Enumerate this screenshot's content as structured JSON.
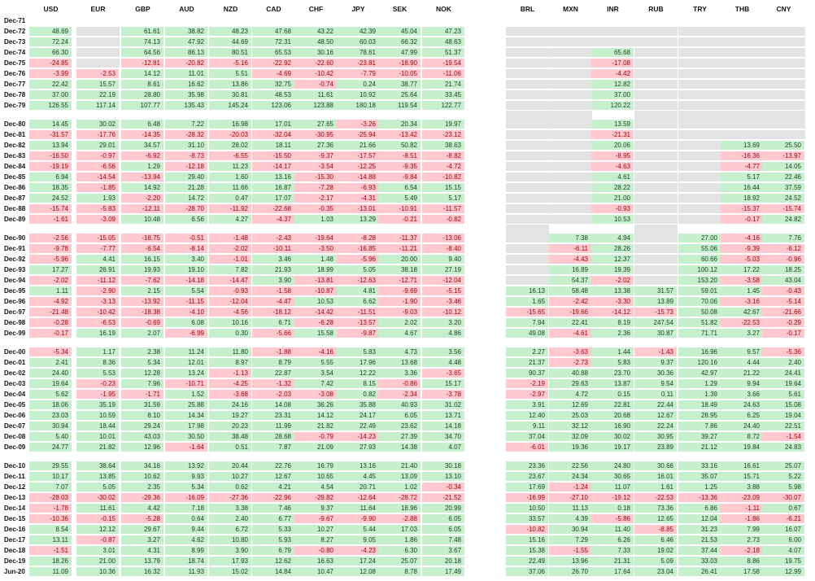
{
  "columns_left": [
    "USD",
    "EUR",
    "GBP",
    "AUD",
    "NZD",
    "CAD",
    "CHF",
    "JPY",
    "SEK",
    "NOK"
  ],
  "columns_right": [
    "BRL",
    "MXN",
    "INR",
    "RUB",
    "TRY",
    "THB",
    "CNY"
  ],
  "colors": {
    "positive": "#c6efce",
    "negative": "#ffc7ce",
    "missing": "#e3e3e3"
  },
  "rows": [
    {
      "label": "Dec-71",
      "left": [
        null,
        null,
        null,
        null,
        null,
        null,
        null,
        null,
        null,
        null
      ],
      "right": [
        null,
        null,
        null,
        null,
        null,
        null,
        null
      ]
    },
    {
      "label": "Dec-72",
      "left": [
        "48.69",
        null,
        "61.61",
        "38.82",
        "48.23",
        "47.68",
        "43.22",
        "42.39",
        "45.04",
        "47.23"
      ],
      "right": [
        null,
        null,
        null,
        null,
        null,
        null,
        null
      ]
    },
    {
      "label": "Dec-73",
      "left": [
        "72.24",
        null,
        "74.13",
        "47.92",
        "44.69",
        "72.31",
        "48.50",
        "60.03",
        "66.32",
        "48.63"
      ],
      "right": [
        null,
        null,
        null,
        null,
        null,
        null,
        null
      ]
    },
    {
      "label": "Dec-74",
      "left": [
        "66.30",
        null,
        "64.56",
        "86.13",
        "80.51",
        "65.53",
        "30.16",
        "78.61",
        "47.99",
        "51.37"
      ],
      "right": [
        null,
        null,
        "65.68",
        null,
        null,
        null,
        null
      ]
    },
    {
      "label": "Dec-75",
      "left": [
        "-24.85",
        null,
        "-12.81",
        "-20.82",
        "-5.16",
        "-22.92",
        "-22.60",
        "-23.81",
        "-18.90",
        "-19.54"
      ],
      "right": [
        null,
        null,
        "-17.08",
        null,
        null,
        null,
        null
      ]
    },
    {
      "label": "Dec-76",
      "left": [
        "-3.99",
        "-2.53",
        "14.12",
        "11.01",
        "5.51",
        "-4.69",
        "-10.42",
        "-7.79",
        "-10.05",
        "-11.06"
      ],
      "right": [
        null,
        null,
        "-4.42",
        null,
        null,
        null,
        null
      ]
    },
    {
      "label": "Dec-77",
      "left": [
        "22.42",
        "15.57",
        "8.61",
        "16.62",
        "13.86",
        "32.75",
        "-0.74",
        "0.24",
        "38.77",
        "21.74"
      ],
      "right": [
        null,
        null,
        "12.82",
        null,
        null,
        null,
        null
      ]
    },
    {
      "label": "Dec-78",
      "left": [
        "37.00",
        "22.19",
        "28.80",
        "35.98",
        "30.81",
        "48.53",
        "11.61",
        "10.92",
        "25.64",
        "33.45"
      ],
      "right": [
        null,
        null,
        "37.00",
        null,
        null,
        null,
        null
      ]
    },
    {
      "label": "Dec-79",
      "left": [
        "126.55",
        "117.14",
        "107.77",
        "135.43",
        "145.24",
        "123.06",
        "123.88",
        "180.18",
        "119.54",
        "122.77"
      ],
      "right": [
        null,
        null,
        "120.22",
        null,
        null,
        null,
        null
      ]
    },
    {
      "label": "Dec-80",
      "left": [
        "14.45",
        "30.02",
        "6.48",
        "7.22",
        "16.98",
        "17.01",
        "27.65",
        "-3.26",
        "20.34",
        "19.97"
      ],
      "right": [
        null,
        null,
        "13.59",
        null,
        null,
        null,
        null
      ]
    },
    {
      "label": "Dec-81",
      "left": [
        "-31.57",
        "-17.76",
        "-14.35",
        "-28.32",
        "-20.03",
        "-32.04",
        "-30.95",
        "-25.94",
        "-13.42",
        "-23.12"
      ],
      "right": [
        null,
        null,
        "-21.31",
        null,
        null,
        null,
        null
      ]
    },
    {
      "label": "Dec-82",
      "left": [
        "13.94",
        "29.01",
        "34.57",
        "31.10",
        "28.02",
        "18.11",
        "27.36",
        "21.66",
        "50.82",
        "38.63"
      ],
      "right": [
        null,
        null,
        "20.06",
        null,
        null,
        "13.69",
        "25.50"
      ]
    },
    {
      "label": "Dec-83",
      "left": [
        "-16.50",
        "-0.97",
        "-6.92",
        "-8.73",
        "-6.55",
        "-15.50",
        "-9.37",
        "-17.57",
        "-8.51",
        "-8.82"
      ],
      "right": [
        null,
        null,
        "-8.95",
        null,
        null,
        "-16.36",
        "-13.97"
      ]
    },
    {
      "label": "Dec-84",
      "left": [
        "-19.19",
        "-6.56",
        "1.29",
        "-12.18",
        "11.23",
        "-14.17",
        "-3.54",
        "-12.25",
        "-9.35",
        "-4.72"
      ],
      "right": [
        null,
        null,
        "-4.63",
        null,
        null,
        "-4.77",
        "14.05"
      ]
    },
    {
      "label": "Dec-85",
      "left": [
        "6.94",
        "-14.54",
        "-13.94",
        "29.40",
        "1.60",
        "13.16",
        "-15.30",
        "-14.88",
        "-9.84",
        "-10.82"
      ],
      "right": [
        null,
        null,
        "4.61",
        null,
        null,
        "5.17",
        "22.46"
      ]
    },
    {
      "label": "Dec-86",
      "left": [
        "18.35",
        "-1.85",
        "14.92",
        "21.28",
        "11.66",
        "16.87",
        "-7.28",
        "-6.93",
        "6.54",
        "15.15"
      ],
      "right": [
        null,
        null,
        "28.22",
        null,
        null,
        "16.44",
        "37.59"
      ]
    },
    {
      "label": "Dec-87",
      "left": [
        "24.52",
        "1.93",
        "-2.20",
        "14.72",
        "0.47",
        "17.07",
        "-2.17",
        "-4.31",
        "5.49",
        "5.17"
      ],
      "right": [
        null,
        null,
        "21.00",
        null,
        null,
        "18.92",
        "24.52"
      ]
    },
    {
      "label": "Dec-88",
      "left": [
        "-15.74",
        "-5.83",
        "-12.11",
        "-28.70",
        "-11.92",
        "-22.68",
        "-0.35",
        "-13.01",
        "-10.91",
        "-11.57"
      ],
      "right": [
        null,
        null,
        "-0.93",
        null,
        null,
        "-15.37",
        "-15.74"
      ]
    },
    {
      "label": "Dec-89",
      "left": [
        "-1.61",
        "-3.09",
        "10.48",
        "6.56",
        "4.27",
        "-4.37",
        "1.03",
        "13.29",
        "-0.21",
        "-0.82"
      ],
      "right": [
        null,
        null,
        "10.53",
        null,
        null,
        "-0.17",
        "24.82"
      ]
    },
    {
      "label": "Dec-90",
      "left": [
        "-2.56",
        "-15.05",
        "-18.75",
        "-0.51",
        "-1.48",
        "-2.43",
        "-19.64",
        "-8.28",
        "-11.37",
        "-13.06"
      ],
      "right": [
        null,
        "7.38",
        "4.94",
        null,
        "27.00",
        "-4.16",
        "7.76"
      ]
    },
    {
      "label": "Dec-91",
      "left": [
        "-9.78",
        "-7.77",
        "-6.54",
        "-8.14",
        "-2.02",
        "-10.11",
        "-3.50",
        "-16.85",
        "-11.21",
        "-8.40"
      ],
      "right": [
        null,
        "-6.11",
        "28.26",
        null,
        "55.06",
        "-9.39",
        "-6.12"
      ]
    },
    {
      "label": "Dec-92",
      "left": [
        "-5.96",
        "4.41",
        "16.15",
        "3.40",
        "-1.01",
        "3.46",
        "1.48",
        "-5.96",
        "20.00",
        "9.40"
      ],
      "right": [
        null,
        "-4.43",
        "12.37",
        null,
        "60.66",
        "-5.03",
        "-0.96"
      ]
    },
    {
      "label": "Dec-93",
      "left": [
        "17.27",
        "26.91",
        "19.93",
        "19.10",
        "7.82",
        "21.93",
        "18.99",
        "5.05",
        "38.18",
        "27.19"
      ],
      "right": [
        null,
        "16.89",
        "19.39",
        null,
        "100.12",
        "17.22",
        "18.25"
      ]
    },
    {
      "label": "Dec-94",
      "left": [
        "-2.02",
        "-11.12",
        "-7.62",
        "-14.18",
        "-14.47",
        "3.90",
        "-13.81",
        "-12.63",
        "-12.71",
        "-12.04"
      ],
      "right": [
        null,
        "54.37",
        "-2.02",
        null,
        "153.20",
        "-3.58",
        "43.04"
      ]
    },
    {
      "label": "Dec-95",
      "left": [
        "1.11",
        "-2.90",
        "2.15",
        "5.54",
        "-0.93",
        "-1.58",
        "-10.87",
        "4.81",
        "-9.69",
        "-5.15"
      ],
      "right": [
        "16.13",
        "58.48",
        "13.38",
        "31.57",
        "59.01",
        "1.45",
        "-0.43"
      ]
    },
    {
      "label": "Dec-96",
      "left": [
        "-4.92",
        "-3.13",
        "-13.92",
        "-11.15",
        "-12.04",
        "-4.47",
        "10.53",
        "6.62",
        "-1.90",
        "-3.46"
      ],
      "right": [
        "1.65",
        "-2.42",
        "-3.30",
        "13.89",
        "70.06",
        "-3.16",
        "-5.14"
      ]
    },
    {
      "label": "Dec-97",
      "left": [
        "-21.48",
        "-10.42",
        "-18.38",
        "-4.10",
        "-4.56",
        "-18.12",
        "-14.42",
        "-11.51",
        "-9.03",
        "-10.12"
      ],
      "right": [
        "-15.65",
        "-19.66",
        "-14.12",
        "-15.73",
        "50.08",
        "42.67",
        "-21.66"
      ]
    },
    {
      "label": "Dec-98",
      "left": [
        "-0.28",
        "-6.53",
        "-0.69",
        "6.08",
        "10.16",
        "6.71",
        "-6.28",
        "-13.57",
        "2.02",
        "3.20"
      ],
      "right": [
        "7.94",
        "22.41",
        "8.19",
        "247.54",
        "51.82",
        "-22.53",
        "-0.29"
      ]
    },
    {
      "label": "Dec-99",
      "left": [
        "-0.17",
        "16.19",
        "2.07",
        "-6.99",
        "0.30",
        "-5.66",
        "15.58",
        "-9.87",
        "4.67",
        "4.86"
      ],
      "right": [
        "49.08",
        "-4.61",
        "2.36",
        "30.87",
        "71.71",
        "3.27",
        "-0.17"
      ]
    },
    {
      "label": "Dec-00",
      "left": [
        "-5.34",
        "1.17",
        "2.38",
        "11.24",
        "11.80",
        "-1.88",
        "-4.16",
        "5.83",
        "4.73",
        "3.56"
      ],
      "right": [
        "2.27",
        "-3.63",
        "1.44",
        "-1.43",
        "16.96",
        "9.57",
        "-5.36"
      ]
    },
    {
      "label": "Dec-01",
      "left": [
        "2.41",
        "8.36",
        "5.34",
        "12.01",
        "8.97",
        "8.79",
        "5.55",
        "17.96",
        "13.68",
        "4.48"
      ],
      "right": [
        "21.37",
        "-2.73",
        "5.83",
        "9.37",
        "120.16",
        "4.44",
        "2.40"
      ]
    },
    {
      "label": "Dec-02",
      "left": [
        "24.40",
        "5.53",
        "12.28",
        "13.24",
        "-1.13",
        "22.87",
        "3.54",
        "12.22",
        "3.36",
        "-3.65"
      ],
      "right": [
        "90.37",
        "40.88",
        "23.70",
        "30.36",
        "42.97",
        "21.22",
        "24.41"
      ]
    },
    {
      "label": "Dec-03",
      "left": [
        "19.64",
        "-0.23",
        "7.96",
        "-10.71",
        "-4.25",
        "-1.32",
        "7.42",
        "8.15",
        "-0.86",
        "15.17"
      ],
      "right": [
        "-2.19",
        "29.63",
        "13.87",
        "9.54",
        "1.29",
        "9.94",
        "19.64"
      ]
    },
    {
      "label": "Dec-04",
      "left": [
        "5.62",
        "-1.95",
        "-1.71",
        "1.52",
        "-3.68",
        "-2.03",
        "-3.08",
        "0.82",
        "-2.34",
        "-3.78"
      ],
      "right": [
        "-2.97",
        "4.72",
        "0.15",
        "0.11",
        "1.39",
        "3.66",
        "5.61"
      ]
    },
    {
      "label": "Dec-05",
      "left": [
        "18.06",
        "35.19",
        "31.59",
        "25.88",
        "24.16",
        "14.08",
        "36.26",
        "35.88",
        "40.93",
        "31.02"
      ],
      "right": [
        "3.91",
        "12.69",
        "22.81",
        "22.44",
        "18.49",
        "24.63",
        "15.08"
      ]
    },
    {
      "label": "Dec-06",
      "left": [
        "23.03",
        "10.59",
        "8.10",
        "14.34",
        "19.27",
        "23.31",
        "14.12",
        "24.17",
        "6.05",
        "13.71"
      ],
      "right": [
        "12.40",
        "25.03",
        "20.68",
        "12.67",
        "28.95",
        "6.25",
        "19.04"
      ]
    },
    {
      "label": "Dec-07",
      "left": [
        "30.94",
        "18.44",
        "29.24",
        "17.98",
        "20.23",
        "11.99",
        "21.82",
        "22.49",
        "23.62",
        "14.18"
      ],
      "right": [
        "9.11",
        "32.12",
        "16.90",
        "22.24",
        "7.86",
        "24.40",
        "22.51"
      ]
    },
    {
      "label": "Dec-08",
      "left": [
        "5.40",
        "10.01",
        "43.03",
        "30.50",
        "38.48",
        "28.68",
        "-0.79",
        "-14.23",
        "27.39",
        "34.70"
      ],
      "right": [
        "37.04",
        "32.09",
        "30.02",
        "30.95",
        "39.27",
        "8.72",
        "-1.54"
      ]
    },
    {
      "label": "Dec-09",
      "left": [
        "24.77",
        "21.82",
        "12.96",
        "-1.64",
        "0.51",
        "7.87",
        "21.09",
        "27.93",
        "14.38",
        "4.07"
      ],
      "right": [
        "-6.01",
        "19.36",
        "19.17",
        "23.89",
        "21.12",
        "19.84",
        "24.83"
      ]
    },
    {
      "label": "Dec-10",
      "left": [
        "29.55",
        "38.64",
        "34.16",
        "13.92",
        "20.44",
        "22.76",
        "16.79",
        "13.16",
        "21.40",
        "30.18"
      ],
      "right": [
        "23.36",
        "22.56",
        "24.80",
        "30.66",
        "33.16",
        "16.61",
        "25.07"
      ]
    },
    {
      "label": "Dec-11",
      "left": [
        "10.17",
        "13.85",
        "10.62",
        "9.93",
        "10.27",
        "12.67",
        "10.65",
        "4.45",
        "13.09",
        "13.10"
      ],
      "right": [
        "23.67",
        "24.34",
        "30.65",
        "16.01",
        "35.07",
        "15.71",
        "5.22"
      ]
    },
    {
      "label": "Dec-12",
      "left": [
        "7.07",
        "5.05",
        "2.35",
        "5.34",
        "0.62",
        "4.21",
        "4.54",
        "20.71",
        "1.02",
        "-0.34"
      ],
      "right": [
        "17.69",
        "-1.24",
        "11.07",
        "1.61",
        "1.25",
        "3.88",
        "5.98"
      ]
    },
    {
      "label": "Dec-13",
      "left": [
        "-28.03",
        "-30.02",
        "-29.36",
        "-16.09",
        "-27.36",
        "-22.96",
        "-29.82",
        "-12.64",
        "-28.72",
        "-21.52"
      ],
      "right": [
        "-16.99",
        "-27.10",
        "-19.12",
        "-22.53",
        "-13.36",
        "-23.09",
        "-30.07"
      ]
    },
    {
      "label": "Dec-14",
      "left": [
        "-1.78",
        "11.61",
        "4.42",
        "7.18",
        "3.38",
        "7.46",
        "9.37",
        "11.64",
        "18.96",
        "20.99"
      ],
      "right": [
        "10.50",
        "11.13",
        "0.18",
        "73.36",
        "6.86",
        "-1.11",
        "0.67"
      ]
    },
    {
      "label": "Dec-15",
      "left": [
        "-10.36",
        "-0.15",
        "-5.28",
        "0.64",
        "2.40",
        "6.77",
        "-9.67",
        "-9.90",
        "-2.88",
        "6.05"
      ],
      "right": [
        "33.57",
        "4.39",
        "-5.86",
        "12.65",
        "12.04",
        "-1.86",
        "-6.21"
      ]
    },
    {
      "label": "Dec-16",
      "left": [
        "8.54",
        "12.12",
        "29.67",
        "9.44",
        "6.72",
        "5.33",
        "10.27",
        "5.44",
        "17.03",
        "6.05"
      ],
      "right": [
        "-10.82",
        "30.94",
        "11.40",
        "-8.85",
        "31.23",
        "7.99",
        "16.07"
      ]
    },
    {
      "label": "Dec-17",
      "left": [
        "13.11",
        "-0.87",
        "3.27",
        "4.62",
        "10.80",
        "5.93",
        "8.27",
        "9.05",
        "1.86",
        "7.48"
      ],
      "right": [
        "15.16",
        "7.29",
        "6.26",
        "6.46",
        "21.53",
        "2.73",
        "6.00"
      ]
    },
    {
      "label": "Dec-18",
      "left": [
        "-1.51",
        "3.01",
        "4.31",
        "8.99",
        "3.90",
        "6.79",
        "-0.80",
        "-4.23",
        "6.30",
        "3.67"
      ],
      "right": [
        "15.38",
        "-1.55",
        "7.33",
        "19.02",
        "37.44",
        "-2.18",
        "4.07"
      ]
    },
    {
      "label": "Dec-19",
      "left": [
        "18.26",
        "21.00",
        "13.79",
        "18.74",
        "17.93",
        "12.62",
        "16.63",
        "17.24",
        "25.07",
        "20.18"
      ],
      "right": [
        "22.49",
        "13.96",
        "21.31",
        "5.09",
        "33.03",
        "8.86",
        "19.75"
      ]
    },
    {
      "label": "Jun-20",
      "left": [
        "11.09",
        "10.36",
        "16.32",
        "11.93",
        "15.02",
        "14.84",
        "10.47",
        "12.08",
        "8.78",
        "17.49"
      ],
      "right": [
        "37.06",
        "26.70",
        "17.64",
        "23.04",
        "26.41",
        "17.58",
        "12.99"
      ]
    }
  ]
}
